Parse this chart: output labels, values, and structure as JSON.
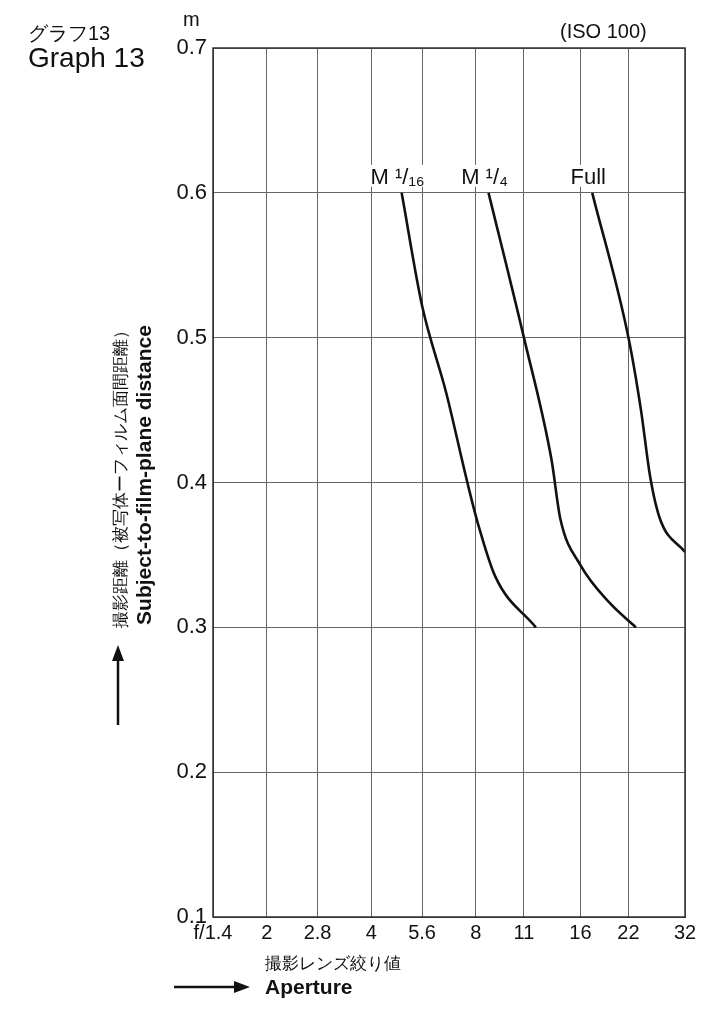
{
  "chart_data": {
    "type": "line",
    "title": "グラフ13",
    "subtitle": "Graph 13",
    "xlabel": "撮影レンズ絞り値\nAperture",
    "ylabel": "撮影距離（被写体ーフィルム面間距離）\nSubject-to-film-plane distance",
    "annotations": [
      "m",
      "(ISO 100)"
    ],
    "log": "x",
    "grid": true,
    "xlim": [
      1.4,
      32
    ],
    "xticks": [
      {
        "value": 1.4,
        "label": "f/1.4"
      },
      2,
      2.8,
      4,
      5.6,
      8,
      11,
      16,
      22,
      32
    ],
    "ylim": [
      0.1,
      0.7
    ],
    "yticks": [
      0.1,
      0.2,
      0.3,
      0.4,
      0.5,
      0.6,
      0.7
    ],
    "series": [
      {
        "name": "M ¹/₁₆",
        "color": "#111111",
        "x": [
          4.89,
          5.6,
          6.57,
          7.56,
          8.1,
          9.1,
          11.9
        ],
        "values": [
          0.6,
          0.522,
          0.462,
          0.4,
          0.372,
          0.335,
          0.3
        ]
      },
      {
        "name": "M ¹/₄",
        "color": "#111111",
        "x": [
          8.7,
          11,
          13.2,
          14.0,
          16,
          19.4,
          23.1
        ],
        "values": [
          0.6,
          0.5,
          0.416,
          0.375,
          0.343,
          0.317,
          0.3
        ]
      },
      {
        "name": "Full",
        "color": "#111111",
        "x": [
          17.3,
          22,
          23.9,
          25.4,
          27.1,
          32
        ],
        "values": [
          0.6,
          0.5,
          0.45,
          0.404,
          0.375,
          0.352
        ]
      }
    ]
  }
}
